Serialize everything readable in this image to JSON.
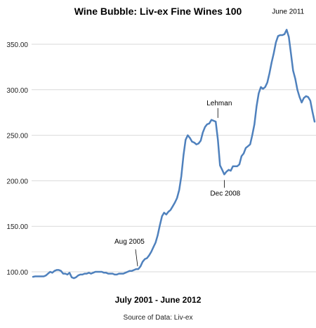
{
  "chart_data": {
    "type": "line",
    "title": "Wine Bubble: Liv-ex Fine Wines 100",
    "xlabel": "July 2001 - June 2012",
    "source": "Source of Data: Liv-ex",
    "ylim": [
      93,
      368
    ],
    "yticks": [
      100,
      150,
      200,
      250,
      300,
      350
    ],
    "ytick_labels": [
      "100.00",
      "150.00",
      "200.00",
      "250.00",
      "300.00",
      "350.00"
    ],
    "grid": "horizontal",
    "line_color": "#4f81bd",
    "x": [
      "2001-07",
      "2001-08",
      "2001-09",
      "2001-10",
      "2001-11",
      "2001-12",
      "2002-01",
      "2002-02",
      "2002-03",
      "2002-04",
      "2002-05",
      "2002-06",
      "2002-07",
      "2002-08",
      "2002-09",
      "2002-10",
      "2002-11",
      "2002-12",
      "2003-01",
      "2003-02",
      "2003-03",
      "2003-04",
      "2003-05",
      "2003-06",
      "2003-07",
      "2003-08",
      "2003-09",
      "2003-10",
      "2003-11",
      "2003-12",
      "2004-01",
      "2004-02",
      "2004-03",
      "2004-04",
      "2004-05",
      "2004-06",
      "2004-07",
      "2004-08",
      "2004-09",
      "2004-10",
      "2004-11",
      "2004-12",
      "2005-01",
      "2005-02",
      "2005-03",
      "2005-04",
      "2005-05",
      "2005-06",
      "2005-07",
      "2005-08",
      "2005-09",
      "2005-10",
      "2005-11",
      "2005-12",
      "2006-01",
      "2006-02",
      "2006-03",
      "2006-04",
      "2006-05",
      "2006-06",
      "2006-07",
      "2006-08",
      "2006-09",
      "2006-10",
      "2006-11",
      "2006-12",
      "2007-01",
      "2007-02",
      "2007-03",
      "2007-04",
      "2007-05",
      "2007-06",
      "2007-07",
      "2007-08",
      "2007-09",
      "2007-10",
      "2007-11",
      "2007-12",
      "2008-01",
      "2008-02",
      "2008-03",
      "2008-04",
      "2008-05",
      "2008-06",
      "2008-07",
      "2008-08",
      "2008-09",
      "2008-10",
      "2008-11",
      "2008-12",
      "2009-01",
      "2009-02",
      "2009-03",
      "2009-04",
      "2009-05",
      "2009-06",
      "2009-07",
      "2009-08",
      "2009-09",
      "2009-10",
      "2009-11",
      "2009-12",
      "2010-01",
      "2010-02",
      "2010-03",
      "2010-04",
      "2010-05",
      "2010-06",
      "2010-07",
      "2010-08",
      "2010-09",
      "2010-10",
      "2010-11",
      "2010-12",
      "2011-01",
      "2011-02",
      "2011-03",
      "2011-04",
      "2011-05",
      "2011-06",
      "2011-07",
      "2011-08",
      "2011-09",
      "2011-10",
      "2011-11",
      "2011-12",
      "2012-01",
      "2012-02",
      "2012-03",
      "2012-04",
      "2012-05",
      "2012-06"
    ],
    "series": [
      {
        "values": [
          94.5,
          95,
          95,
          95,
          95,
          95,
          96,
          98,
          100,
          99,
          101,
          102,
          102,
          101,
          98,
          98,
          97,
          99,
          94,
          93,
          94,
          96,
          97,
          97,
          98,
          98,
          99,
          98,
          99,
          100,
          100,
          100,
          100,
          99,
          99,
          98,
          98,
          98,
          97,
          97,
          98,
          98,
          98,
          99,
          100,
          101,
          101,
          102,
          103,
          103,
          106,
          111,
          114,
          115,
          118,
          122,
          127,
          132,
          140,
          151,
          161,
          165,
          163,
          166,
          168,
          172,
          176,
          181,
          190,
          205,
          228,
          245,
          250,
          247,
          243,
          242,
          240,
          241,
          244,
          253,
          259,
          262,
          263,
          267,
          266,
          265,
          245,
          217,
          212,
          207,
          210,
          212,
          211,
          216,
          216,
          216,
          218,
          227,
          230,
          236,
          238,
          240,
          250,
          262,
          282,
          296,
          303,
          301,
          303,
          308,
          318,
          330,
          340,
          352,
          359,
          360,
          360,
          361,
          366,
          358,
          340,
          321,
          312,
          300,
          292,
          286,
          291,
          293,
          292,
          288,
          276,
          265
        ]
      }
    ],
    "annotations": [
      {
        "label": "Aug 2005",
        "x": "2005-08",
        "y": 103
      },
      {
        "label": "Lehman",
        "x": "2008-09",
        "y": 266
      },
      {
        "label": "Dec 2008",
        "x": "2008-12",
        "y": 207
      },
      {
        "label": "June 2011",
        "x": "2011-06",
        "y": 366
      }
    ]
  }
}
